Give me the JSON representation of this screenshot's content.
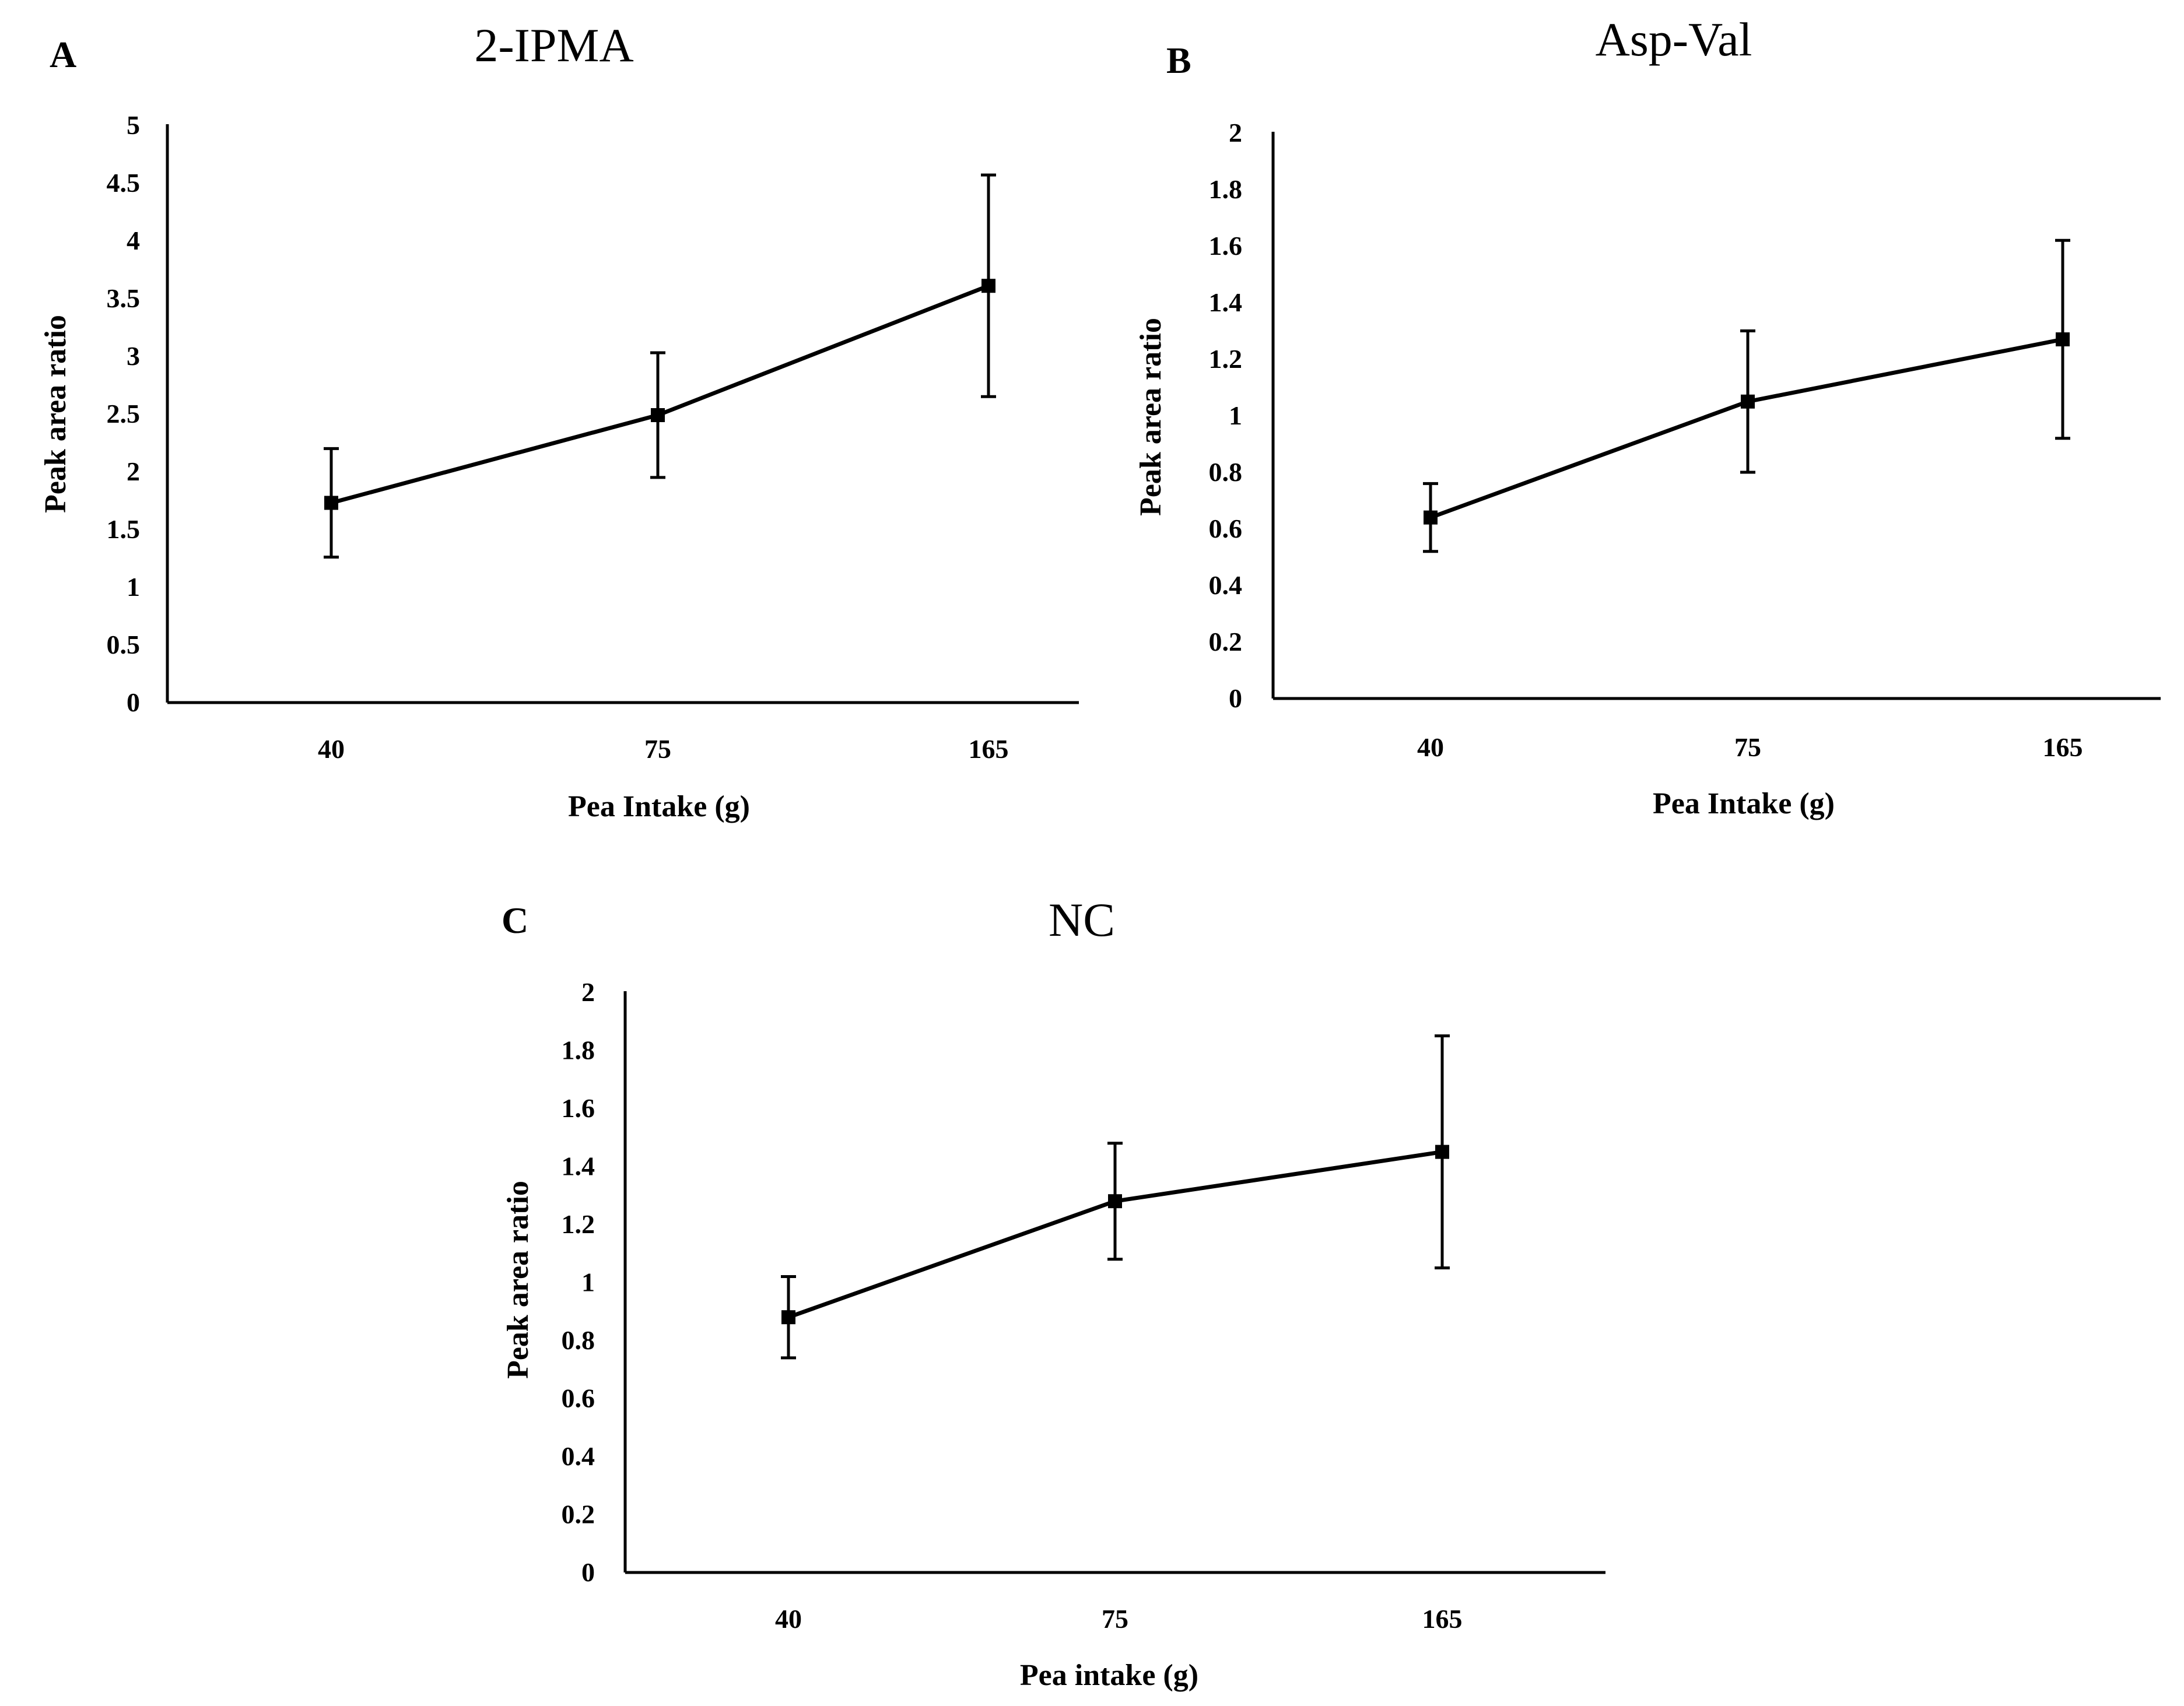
{
  "chart_data": [
    {
      "panel": "A",
      "type": "line",
      "title": "2-IPMA",
      "xlabel": "Pea Intake (g)",
      "ylabel": "Peak area ratio",
      "categories": [
        "40",
        "75",
        "165"
      ],
      "values": [
        1.73,
        2.49,
        3.61
      ],
      "errors": [
        0.47,
        0.54,
        0.96
      ],
      "ylim": [
        0,
        5
      ],
      "yticks": [
        "0",
        "0.5",
        "1",
        "1.5",
        "2",
        "2.5",
        "3",
        "3.5",
        "4",
        "4.5",
        "5"
      ],
      "grid": false,
      "marker": "square"
    },
    {
      "panel": "B",
      "type": "line",
      "title": "Asp-Val",
      "xlabel": "Pea Intake (g)",
      "ylabel": "Peak area ratio",
      "categories": [
        "40",
        "75",
        "165"
      ],
      "values": [
        0.64,
        1.05,
        1.27
      ],
      "errors": [
        0.12,
        0.25,
        0.35
      ],
      "ylim": [
        0,
        2
      ],
      "yticks": [
        "0",
        "0.2",
        "0.4",
        "0.6",
        "0.8",
        "1",
        "1.2",
        "1.4",
        "1.6",
        "1.8",
        "2"
      ],
      "grid": false,
      "marker": "square"
    },
    {
      "panel": "C",
      "type": "line",
      "title": "NC",
      "xlabel": "Pea intake (g)",
      "ylabel": "Peak area ratio",
      "categories": [
        "40",
        "75",
        "165"
      ],
      "values": [
        0.88,
        1.28,
        1.45
      ],
      "errors": [
        0.14,
        0.2,
        0.4
      ],
      "ylim": [
        0,
        2
      ],
      "yticks": [
        "0",
        "0.2",
        "0.4",
        "0.6",
        "0.8",
        "1",
        "1.2",
        "1.4",
        "1.6",
        "1.8",
        "2"
      ],
      "grid": false,
      "marker": "square"
    }
  ],
  "colors": {
    "line": "#000000",
    "axis": "#000000",
    "background": "#ffffff"
  }
}
